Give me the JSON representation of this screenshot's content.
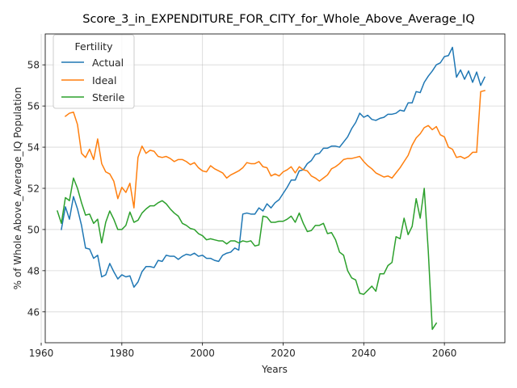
{
  "chart_data": {
    "type": "line",
    "title": "Score_3_in_EXPENDITURE_FOR_CITY_for_Whole_Above_Average_IQ",
    "xlabel": "Years",
    "ylabel": "% of Whole Above_Average_IQ Population",
    "xlim": [
      1961,
      2075
    ],
    "ylim": [
      44.5,
      59.5
    ],
    "xticks": [
      1960,
      1980,
      2000,
      2020,
      2040,
      2060
    ],
    "yticks": [
      46,
      48,
      50,
      52,
      54,
      56,
      58
    ],
    "grid": true,
    "legend": {
      "title": "Fertility",
      "placement": "top-left"
    },
    "series": [
      {
        "name": "Actual",
        "color": "#1f77b4",
        "x": [
          1965,
          1966,
          1967,
          1968,
          1969,
          1970,
          1971,
          1972,
          1973,
          1974,
          1975,
          1976,
          1977,
          1978,
          1979,
          1980,
          1981,
          1982,
          1983,
          1984,
          1985,
          1986,
          1987,
          1988,
          1989,
          1990,
          1991,
          1992,
          1993,
          1994,
          1995,
          1996,
          1997,
          1998,
          1999,
          2000,
          2001,
          2002,
          2003,
          2004,
          2005,
          2006,
          2007,
          2008,
          2009,
          2010,
          2011,
          2012,
          2013,
          2014,
          2015,
          2016,
          2017,
          2018,
          2019,
          2020,
          2021,
          2022,
          2023,
          2024,
          2025,
          2026,
          2027,
          2028,
          2029,
          2030,
          2031,
          2032,
          2033,
          2034,
          2035,
          2036,
          2037,
          2038,
          2039,
          2040,
          2041,
          2042,
          2043,
          2044,
          2045,
          2046,
          2047,
          2048,
          2049,
          2050,
          2051,
          2052,
          2053,
          2054,
          2055,
          2056,
          2057,
          2058,
          2059,
          2060,
          2061,
          2062,
          2063,
          2064,
          2065,
          2066,
          2067,
          2068,
          2069,
          2070
        ],
        "y": [
          50.0,
          51.1,
          50.5,
          51.6,
          51.0,
          50.2,
          49.1,
          49.05,
          48.6,
          48.75,
          47.7,
          47.8,
          48.35,
          47.95,
          47.6,
          47.8,
          47.7,
          47.75,
          47.2,
          47.45,
          47.95,
          48.2,
          48.2,
          48.15,
          48.5,
          48.45,
          48.75,
          48.7,
          48.7,
          48.55,
          48.7,
          48.8,
          48.75,
          48.85,
          48.7,
          48.75,
          48.6,
          48.6,
          48.5,
          48.45,
          48.75,
          48.85,
          48.9,
          49.1,
          49.0,
          50.75,
          50.8,
          50.75,
          50.75,
          51.05,
          50.9,
          51.25,
          51.05,
          51.3,
          51.45,
          51.75,
          52.05,
          52.4,
          52.4,
          52.85,
          52.9,
          53.2,
          53.35,
          53.65,
          53.7,
          53.95,
          53.95,
          54.05,
          54.05,
          54.0,
          54.25,
          54.5,
          54.9,
          55.2,
          55.65,
          55.45,
          55.55,
          55.35,
          55.3,
          55.4,
          55.45,
          55.6,
          55.6,
          55.65,
          55.8,
          55.75,
          56.15,
          56.15,
          56.7,
          56.65,
          57.15,
          57.45,
          57.7,
          58.0,
          58.1,
          58.4,
          58.45,
          58.85,
          57.4,
          57.75,
          57.3,
          57.7,
          57.15,
          57.65,
          57.0,
          57.4
        ]
      },
      {
        "name": "Ideal",
        "color": "#ff7f0e",
        "x": [
          1966,
          1967,
          1968,
          1969,
          1970,
          1971,
          1972,
          1973,
          1974,
          1975,
          1976,
          1977,
          1978,
          1979,
          1980,
          1981,
          1982,
          1983,
          1984,
          1985,
          1986,
          1987,
          1988,
          1989,
          1990,
          1991,
          1992,
          1993,
          1994,
          1995,
          1996,
          1997,
          1998,
          1999,
          2000,
          2001,
          2002,
          2003,
          2004,
          2005,
          2006,
          2007,
          2008,
          2009,
          2010,
          2011,
          2012,
          2013,
          2014,
          2015,
          2016,
          2017,
          2018,
          2019,
          2020,
          2021,
          2022,
          2023,
          2024,
          2025,
          2026,
          2027,
          2028,
          2029,
          2030,
          2031,
          2032,
          2033,
          2034,
          2035,
          2036,
          2037,
          2038,
          2039,
          2040,
          2041,
          2042,
          2043,
          2044,
          2045,
          2046,
          2047,
          2048,
          2049,
          2050,
          2051,
          2052,
          2053,
          2054,
          2055,
          2056,
          2057,
          2058,
          2059,
          2060,
          2061,
          2062,
          2063,
          2064,
          2065,
          2066,
          2067,
          2068,
          2069,
          2070
        ],
        "y": [
          55.5,
          55.65,
          55.7,
          55.1,
          53.7,
          53.5,
          53.9,
          53.4,
          54.4,
          53.2,
          52.8,
          52.7,
          52.35,
          51.5,
          52.05,
          51.8,
          52.25,
          51.05,
          53.5,
          54.05,
          53.7,
          53.85,
          53.8,
          53.55,
          53.5,
          53.55,
          53.45,
          53.3,
          53.4,
          53.4,
          53.3,
          53.15,
          53.25,
          53.0,
          52.85,
          52.8,
          53.1,
          52.95,
          52.85,
          52.75,
          52.5,
          52.65,
          52.75,
          52.85,
          53.0,
          53.25,
          53.2,
          53.2,
          53.3,
          53.05,
          53.0,
          52.6,
          52.7,
          52.6,
          52.8,
          52.9,
          53.05,
          52.75,
          53.05,
          52.9,
          52.85,
          52.6,
          52.5,
          52.35,
          52.5,
          52.65,
          52.95,
          53.05,
          53.2,
          53.4,
          53.45,
          53.45,
          53.5,
          53.55,
          53.3,
          53.1,
          52.95,
          52.75,
          52.65,
          52.55,
          52.6,
          52.5,
          52.75,
          53.0,
          53.3,
          53.6,
          54.1,
          54.45,
          54.65,
          54.95,
          55.05,
          54.85,
          55.0,
          54.6,
          54.5,
          54.0,
          53.9,
          53.5,
          53.55,
          53.45,
          53.55,
          53.75,
          53.75,
          56.7,
          56.75
        ]
      },
      {
        "name": "Sterile",
        "color": "#2ca02c",
        "x": [
          1964,
          1965,
          1966,
          1967,
          1968,
          1969,
          1970,
          1971,
          1972,
          1973,
          1974,
          1975,
          1976,
          1977,
          1978,
          1979,
          1980,
          1981,
          1982,
          1983,
          1984,
          1985,
          1986,
          1987,
          1988,
          1989,
          1990,
          1991,
          1992,
          1993,
          1994,
          1995,
          1996,
          1997,
          1998,
          1999,
          2000,
          2001,
          2002,
          2003,
          2004,
          2005,
          2006,
          2007,
          2008,
          2009,
          2010,
          2011,
          2012,
          2013,
          2014,
          2015,
          2016,
          2017,
          2018,
          2019,
          2020,
          2021,
          2022,
          2023,
          2024,
          2025,
          2026,
          2027,
          2028,
          2029,
          2030,
          2031,
          2032,
          2033,
          2034,
          2035,
          2036,
          2037,
          2038,
          2039,
          2040,
          2041,
          2042,
          2043,
          2044,
          2045,
          2046,
          2047,
          2048,
          2049,
          2050,
          2051,
          2052,
          2053,
          2054,
          2055,
          2056,
          2057,
          2058
        ],
        "y": [
          50.9,
          50.3,
          51.55,
          51.4,
          52.5,
          52.0,
          51.3,
          50.7,
          50.75,
          50.3,
          50.5,
          49.35,
          50.35,
          50.9,
          50.5,
          50.0,
          50.0,
          50.2,
          50.85,
          50.35,
          50.45,
          50.8,
          51.0,
          51.15,
          51.15,
          51.3,
          51.4,
          51.25,
          51.0,
          50.8,
          50.65,
          50.3,
          50.2,
          50.05,
          50.0,
          49.8,
          49.7,
          49.5,
          49.55,
          49.5,
          49.45,
          49.45,
          49.3,
          49.45,
          49.45,
          49.35,
          49.45,
          49.4,
          49.45,
          49.2,
          49.25,
          50.65,
          50.6,
          50.35,
          50.35,
          50.4,
          50.4,
          50.5,
          50.65,
          50.35,
          50.8,
          50.3,
          49.9,
          49.95,
          50.2,
          50.2,
          50.3,
          49.8,
          49.85,
          49.5,
          48.9,
          48.75,
          48.0,
          47.65,
          47.55,
          46.9,
          46.85,
          47.05,
          47.25,
          47.0,
          47.85,
          47.85,
          48.25,
          48.4,
          49.65,
          49.55,
          50.55,
          49.75,
          50.15,
          51.5,
          50.55,
          52.0,
          48.95,
          45.15,
          45.45
        ]
      }
    ]
  }
}
